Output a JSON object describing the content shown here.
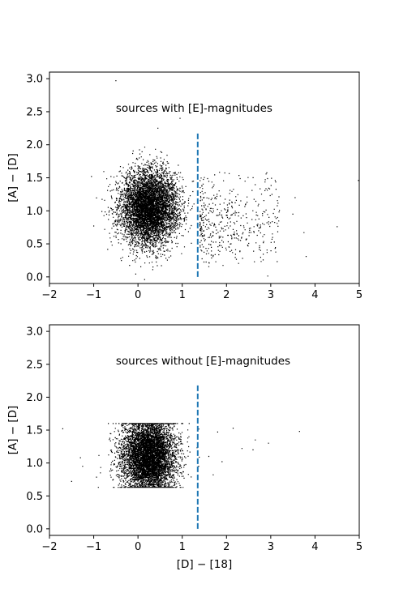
{
  "chart_data": [
    {
      "type": "scatter",
      "annotation": "sources with [E]-magnitudes",
      "xlabel": "",
      "ylabel": "[A] − [D]",
      "xlim": [
        -2,
        5
      ],
      "ylim": [
        -0.1,
        3.1
      ],
      "xticks": [
        "−2",
        "−1",
        "0",
        "1",
        "2",
        "3",
        "4",
        "5"
      ],
      "yticks": [
        "0.0",
        "0.5",
        "1.0",
        "1.5",
        "2.0",
        "2.5",
        "3.0"
      ],
      "grid": false,
      "point_color": "#000000",
      "vline": {
        "x": 1.35,
        "ymin": 0.0,
        "ymax": 2.2,
        "style": "dashed",
        "color": "#1f77b4"
      },
      "cluster": {
        "center_x": 0.25,
        "center_y": 1.05,
        "spread_x": 0.32,
        "spread_y": 0.28,
        "count": 6000
      },
      "tail": {
        "x_range": [
          1.4,
          3.2
        ],
        "y_range": [
          0.2,
          1.6
        ],
        "count": 450
      },
      "outliers": [
        {
          "x": -0.5,
          "y": 2.97
        },
        {
          "x": -1.05,
          "y": 1.52
        },
        {
          "x": -1.0,
          "y": 0.77
        },
        {
          "x": 4.98,
          "y": 1.46
        },
        {
          "x": 4.5,
          "y": 0.76
        },
        {
          "x": 3.75,
          "y": 0.67
        },
        {
          "x": 3.8,
          "y": 0.31
        },
        {
          "x": 3.5,
          "y": 0.95
        },
        {
          "x": 3.55,
          "y": 1.2
        },
        {
          "x": 0.15,
          "y": -0.04
        },
        {
          "x": 0.95,
          "y": 2.4
        },
        {
          "x": 0.45,
          "y": 2.25
        }
      ]
    },
    {
      "type": "scatter",
      "annotation": "sources without [E]-magnitudes",
      "xlabel": "[D] − [18]",
      "ylabel": "[A] − [D]",
      "xlim": [
        -2,
        5
      ],
      "ylim": [
        -0.1,
        3.1
      ],
      "xticks": [
        "−2",
        "−1",
        "0",
        "1",
        "2",
        "3",
        "4",
        "5"
      ],
      "yticks": [
        "0.0",
        "0.5",
        "1.0",
        "1.5",
        "2.0",
        "2.5",
        "3.0"
      ],
      "grid": false,
      "point_color": "#000000",
      "vline": {
        "x": 1.35,
        "ymin": 0.0,
        "ymax": 2.2,
        "style": "dashed",
        "color": "#1f77b4"
      },
      "cluster": {
        "center_x": 0.25,
        "center_y": 1.1,
        "spread_x": 0.3,
        "spread_y": 0.3,
        "count": 6500,
        "y_clip": [
          0.63,
          1.6
        ]
      },
      "outliers": [
        {
          "x": -1.7,
          "y": 1.52
        },
        {
          "x": -1.5,
          "y": 0.72
        },
        {
          "x": -1.3,
          "y": 1.08
        },
        {
          "x": -1.25,
          "y": 0.95
        },
        {
          "x": -0.85,
          "y": 0.85
        },
        {
          "x": 1.8,
          "y": 1.47
        },
        {
          "x": 2.15,
          "y": 1.53
        },
        {
          "x": 2.35,
          "y": 1.22
        },
        {
          "x": 2.65,
          "y": 1.35
        },
        {
          "x": 2.6,
          "y": 1.2
        },
        {
          "x": 2.95,
          "y": 1.3
        },
        {
          "x": 3.65,
          "y": 1.48
        },
        {
          "x": 1.9,
          "y": 1.02
        },
        {
          "x": 1.7,
          "y": 0.82
        },
        {
          "x": 1.6,
          "y": 1.1
        }
      ]
    }
  ]
}
